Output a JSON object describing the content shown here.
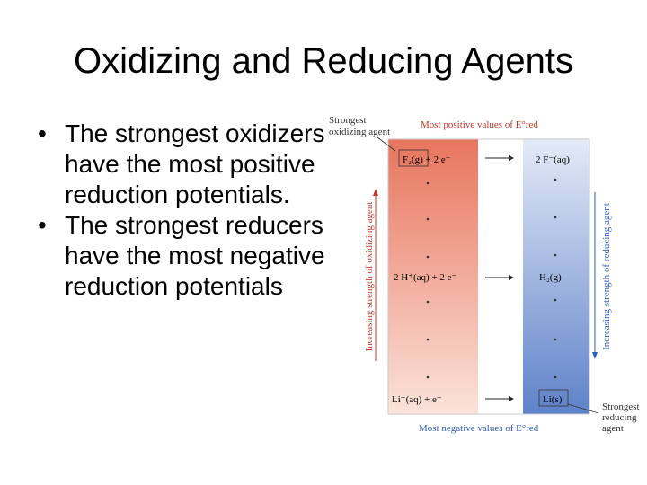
{
  "slide": {
    "title": "Oxidizing and Reducing Agents",
    "bullets": [
      {
        "marker": "•",
        "text": "The strongest oxidizers have the most positive reduction potentials."
      },
      {
        "marker": "•",
        "text": "The strongest reducers have the most negative reduction potentials"
      }
    ]
  },
  "figure": {
    "top_label_line1": "Strongest",
    "top_label_line2": "oxidizing agent",
    "top_caption": "Most positive values of E°red",
    "bottom_caption": "Most negative values of E°red",
    "bottom_label_line1": "Strongest",
    "bottom_label_line2": "reducing",
    "bottom_label_line3": "agent",
    "left_axis": "Increasing strength of oxidizing agent",
    "right_axis": "Increasing strength of reducing agent",
    "rows": [
      {
        "left": "F₂(g) + 2 e⁻",
        "right": "2 F⁻(aq)"
      },
      {
        "left": "2 H⁺(aq) + 2 e⁻",
        "right": "H₂(g)"
      },
      {
        "left": "Li⁺(aq) + e⁻",
        "right": "Li(s)"
      }
    ],
    "colors": {
      "red_top": "#e8755e",
      "red_bottom": "#fbe3da",
      "blue_top": "#dfe6f6",
      "blue_bottom": "#5e82c9",
      "red_text": "#c0392b",
      "blue_text": "#2e5cb8"
    }
  }
}
